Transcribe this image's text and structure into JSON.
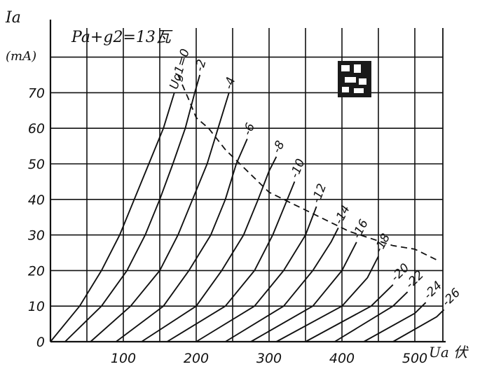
{
  "chart_data": {
    "type": "line",
    "title": "Pa+g2=13瓦",
    "xlabel": "Ua 伏",
    "ylabel": "Ia",
    "yunit": "(mA)",
    "xlim": [
      0,
      550
    ],
    "ylim": [
      0,
      80
    ],
    "x_ticks": [
      100,
      200,
      300,
      400,
      500
    ],
    "y_ticks": [
      0,
      10,
      20,
      30,
      40,
      50,
      60,
      70
    ],
    "grid": true,
    "series": [
      {
        "name": "Ug1=0",
        "points": [
          [
            0,
            0
          ],
          [
            40,
            10
          ],
          [
            70,
            20
          ],
          [
            95,
            30
          ],
          [
            115,
            40
          ],
          [
            135,
            50
          ],
          [
            155,
            60
          ],
          [
            170,
            70
          ]
        ]
      },
      {
        "name": "-2",
        "points": [
          [
            20,
            0
          ],
          [
            70,
            10
          ],
          [
            105,
            20
          ],
          [
            130,
            30
          ],
          [
            150,
            40
          ],
          [
            168,
            50
          ],
          [
            185,
            60
          ],
          [
            198,
            70
          ],
          [
            205,
            75
          ]
        ]
      },
      {
        "name": "-4",
        "points": [
          [
            55,
            0
          ],
          [
            110,
            10
          ],
          [
            150,
            20
          ],
          [
            175,
            30
          ],
          [
            195,
            40
          ],
          [
            215,
            50
          ],
          [
            230,
            60
          ],
          [
            245,
            70
          ]
        ]
      },
      {
        "name": "-6",
        "points": [
          [
            90,
            0
          ],
          [
            155,
            10
          ],
          [
            190,
            20
          ],
          [
            220,
            30
          ],
          [
            240,
            40
          ],
          [
            255,
            50
          ],
          [
            270,
            57
          ]
        ]
      },
      {
        "name": "-8",
        "points": [
          [
            125,
            0
          ],
          [
            200,
            10
          ],
          [
            235,
            20
          ],
          [
            265,
            30
          ],
          [
            285,
            40
          ],
          [
            300,
            48
          ],
          [
            310,
            52
          ]
        ]
      },
      {
        "name": "-10",
        "points": [
          [
            160,
            0
          ],
          [
            240,
            10
          ],
          [
            280,
            20
          ],
          [
            305,
            30
          ],
          [
            325,
            40
          ],
          [
            335,
            45
          ]
        ]
      },
      {
        "name": "-12",
        "points": [
          [
            200,
            0
          ],
          [
            280,
            10
          ],
          [
            320,
            20
          ],
          [
            350,
            30
          ],
          [
            365,
            38
          ]
        ]
      },
      {
        "name": "-14",
        "points": [
          [
            240,
            0
          ],
          [
            320,
            10
          ],
          [
            360,
            20
          ],
          [
            385,
            28
          ],
          [
            395,
            32
          ]
        ]
      },
      {
        "name": "-16",
        "points": [
          [
            275,
            0
          ],
          [
            360,
            10
          ],
          [
            400,
            20
          ],
          [
            420,
            28
          ]
        ]
      },
      {
        "name": "-18",
        "points": [
          [
            310,
            0
          ],
          [
            400,
            10
          ],
          [
            435,
            18
          ],
          [
            450,
            24
          ]
        ]
      },
      {
        "name": "-20",
        "points": [
          [
            350,
            0
          ],
          [
            440,
            10
          ],
          [
            470,
            16
          ]
        ]
      },
      {
        "name": "-22",
        "points": [
          [
            390,
            0
          ],
          [
            470,
            10
          ],
          [
            490,
            14
          ]
        ]
      },
      {
        "name": "-24",
        "points": [
          [
            430,
            0
          ],
          [
            500,
            8
          ],
          [
            515,
            11
          ]
        ]
      },
      {
        "name": "-26",
        "points": [
          [
            470,
            0
          ],
          [
            530,
            7
          ],
          [
            540,
            9
          ]
        ]
      }
    ],
    "dissipation_curve": {
      "name": "Pa+g2=13瓦",
      "points": [
        [
          175,
          75
        ],
        [
          190,
          68
        ],
        [
          200,
          63
        ],
        [
          217,
          60
        ],
        [
          240,
          54
        ],
        [
          260,
          50
        ],
        [
          280,
          46
        ],
        [
          300,
          42
        ],
        [
          320,
          40
        ],
        [
          350,
          37
        ],
        [
          380,
          34
        ],
        [
          410,
          31
        ],
        [
          440,
          29
        ],
        [
          470,
          27
        ],
        [
          500,
          26
        ],
        [
          530,
          23
        ]
      ]
    },
    "curve_labels": [
      {
        "series": "Ug1=0",
        "text": "Ug1=0"
      },
      {
        "series": "-2",
        "text": "-2"
      },
      {
        "series": "-4",
        "text": "-4"
      },
      {
        "series": "-6",
        "text": "-6"
      },
      {
        "series": "-8",
        "text": "-8"
      },
      {
        "series": "-10",
        "text": "-10"
      },
      {
        "series": "-12",
        "text": "-12"
      },
      {
        "series": "-14",
        "text": "-14"
      },
      {
        "series": "-16",
        "text": "-16"
      },
      {
        "series": "-18",
        "text": "-18"
      },
      {
        "series": "-20",
        "text": "-20"
      },
      {
        "series": "-22",
        "text": "-22"
      },
      {
        "series": "-24",
        "text": "-24"
      },
      {
        "series": "-26",
        "text": "-26"
      }
    ],
    "colors": {
      "ink": "#111111",
      "grid": "#111111",
      "background": "#ffffff"
    }
  }
}
